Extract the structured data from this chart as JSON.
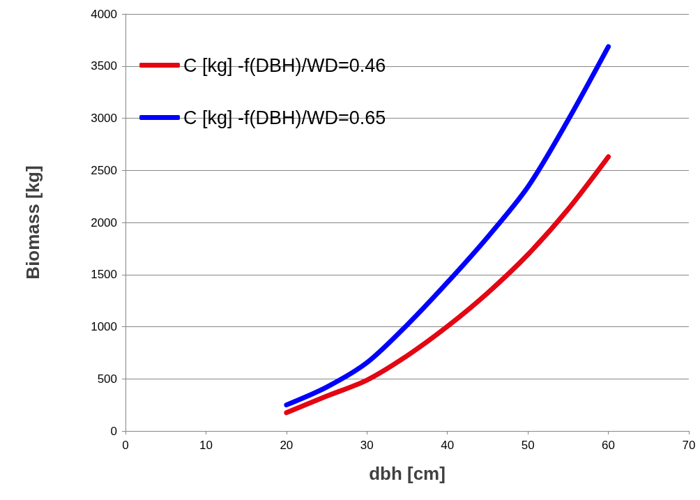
{
  "chart_data": {
    "type": "line",
    "xlabel": "dbh [cm]",
    "ylabel": "Biomass [kg]",
    "xlim": [
      0,
      70
    ],
    "xticks": [
      0,
      10,
      20,
      30,
      40,
      50,
      60,
      70
    ],
    "ylim": [
      0,
      4000
    ],
    "yticks": [
      0,
      500,
      1000,
      1500,
      2000,
      2500,
      3000,
      3500,
      4000
    ],
    "grid": "y",
    "legend": "top left",
    "marker": "none",
    "line_style": "solid",
    "series": [
      {
        "name": "C [kg] -f(DBH)/WD=0.46",
        "color": "#e30613",
        "x": [
          20,
          25,
          30,
          35,
          40,
          45,
          50,
          55,
          60
        ],
        "values": [
          175,
          334,
          488,
          722,
          1003,
          1324,
          1692,
          2127,
          2630
        ]
      },
      {
        "name": "C [kg] -f(DBH)/WD=0.65",
        "color": "#0000ff",
        "x": [
          20,
          25,
          30,
          35,
          40,
          45,
          50,
          55,
          60
        ],
        "values": [
          250,
          421,
          655,
          1017,
          1425,
          1860,
          2341,
          2983,
          3686
        ]
      }
    ]
  }
}
